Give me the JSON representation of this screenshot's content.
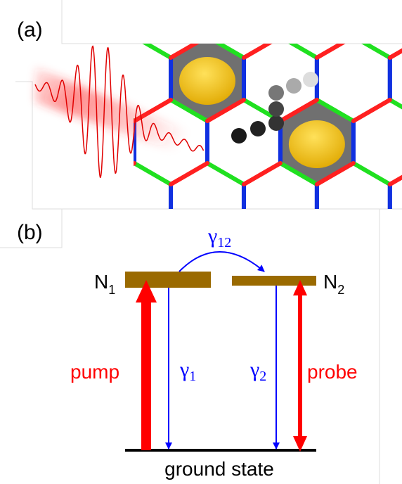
{
  "panels": {
    "a": {
      "label": "(a)"
    },
    "b": {
      "label": "(b)"
    }
  },
  "levels": {
    "n1": {
      "main": "N",
      "sub": "1"
    },
    "n2": {
      "main": "N",
      "sub": "2"
    },
    "ground": "ground state"
  },
  "transitions": {
    "g12": {
      "main": "γ",
      "sub": "12"
    },
    "g1": {
      "main": "γ",
      "sub": "1"
    },
    "g2": {
      "main": "γ",
      "sub": "2"
    },
    "pump": "pump",
    "probe": "probe"
  }
}
